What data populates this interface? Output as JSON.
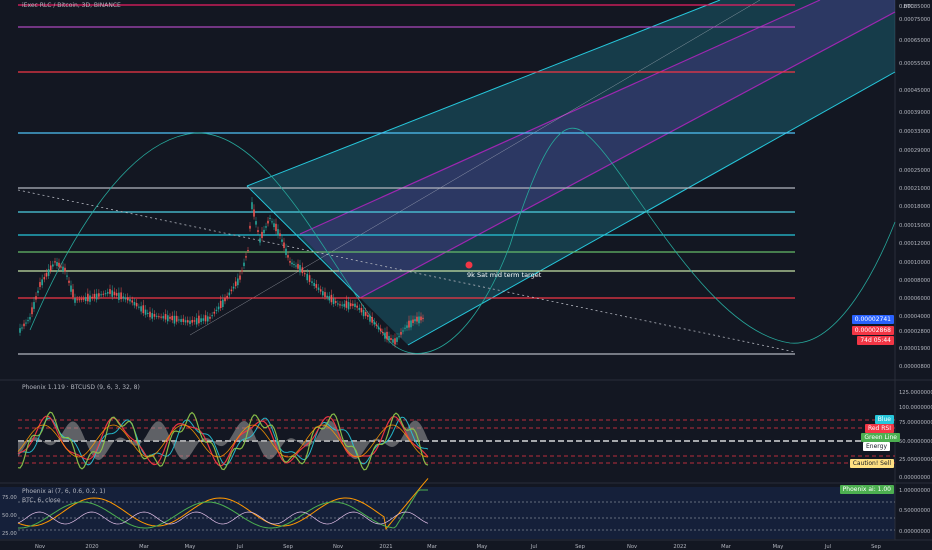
{
  "chart": {
    "title": "iExec RLC / Bitcoin, 3D, BINANCE",
    "currency": "BTC",
    "annotation": "9k Sat mid term target",
    "price_axis": [
      "0.00085000",
      "0.00075000",
      "0.00065000",
      "0.00055000",
      "0.00045000",
      "0.00039000",
      "0.00033000",
      "0.00029000",
      "0.00025000",
      "0.00021000",
      "0.00018000",
      "0.00015000",
      "0.00012000",
      "0.00010000",
      "0.00008000",
      "0.00006000",
      "0.00004000",
      "0.00002800",
      "0.00001900",
      "0.00000800"
    ],
    "price_tags": {
      "current": "0.00002868",
      "hours_tag": "0.00002741",
      "time_tag": "74d 05:44"
    }
  },
  "indicator1": {
    "title": "Phoenix 1.119 · BTCUSD (9, 6, 3, 32, 8)",
    "axis": [
      "125.00000000",
      "100.00000000",
      "75.00000000",
      "50.00000000",
      "25.00000000",
      "0.00000000"
    ],
    "tags": [
      "Blue",
      "Red RSI",
      "Green Line",
      "Energy",
      "Caution! Sell"
    ]
  },
  "indicator2": {
    "title": "Phoenix ai (7, 6, 0.6, 0.2, 1)",
    "subtitle": "BTC, 6, close",
    "left_axis": [
      "75.00",
      "50.00",
      "25.00"
    ],
    "right_axis": [
      "1.00000000",
      "0.50000000",
      "0.00000000"
    ],
    "tag": "Phoenix ai: 1.00"
  },
  "time_axis": [
    "Nov",
    "2020",
    "Mar",
    "May",
    "Jul",
    "Sep",
    "Nov",
    "2021",
    "Mar",
    "May",
    "Jul",
    "Sep",
    "Nov",
    "2022",
    "Mar",
    "May",
    "Jul",
    "Sep"
  ],
  "colors": {
    "background": "#131722",
    "up": "#26a69a",
    "down": "#ef5350",
    "channel_fill": "#26c6da",
    "purple": "#9c27b0",
    "red": "#f23645"
  }
}
